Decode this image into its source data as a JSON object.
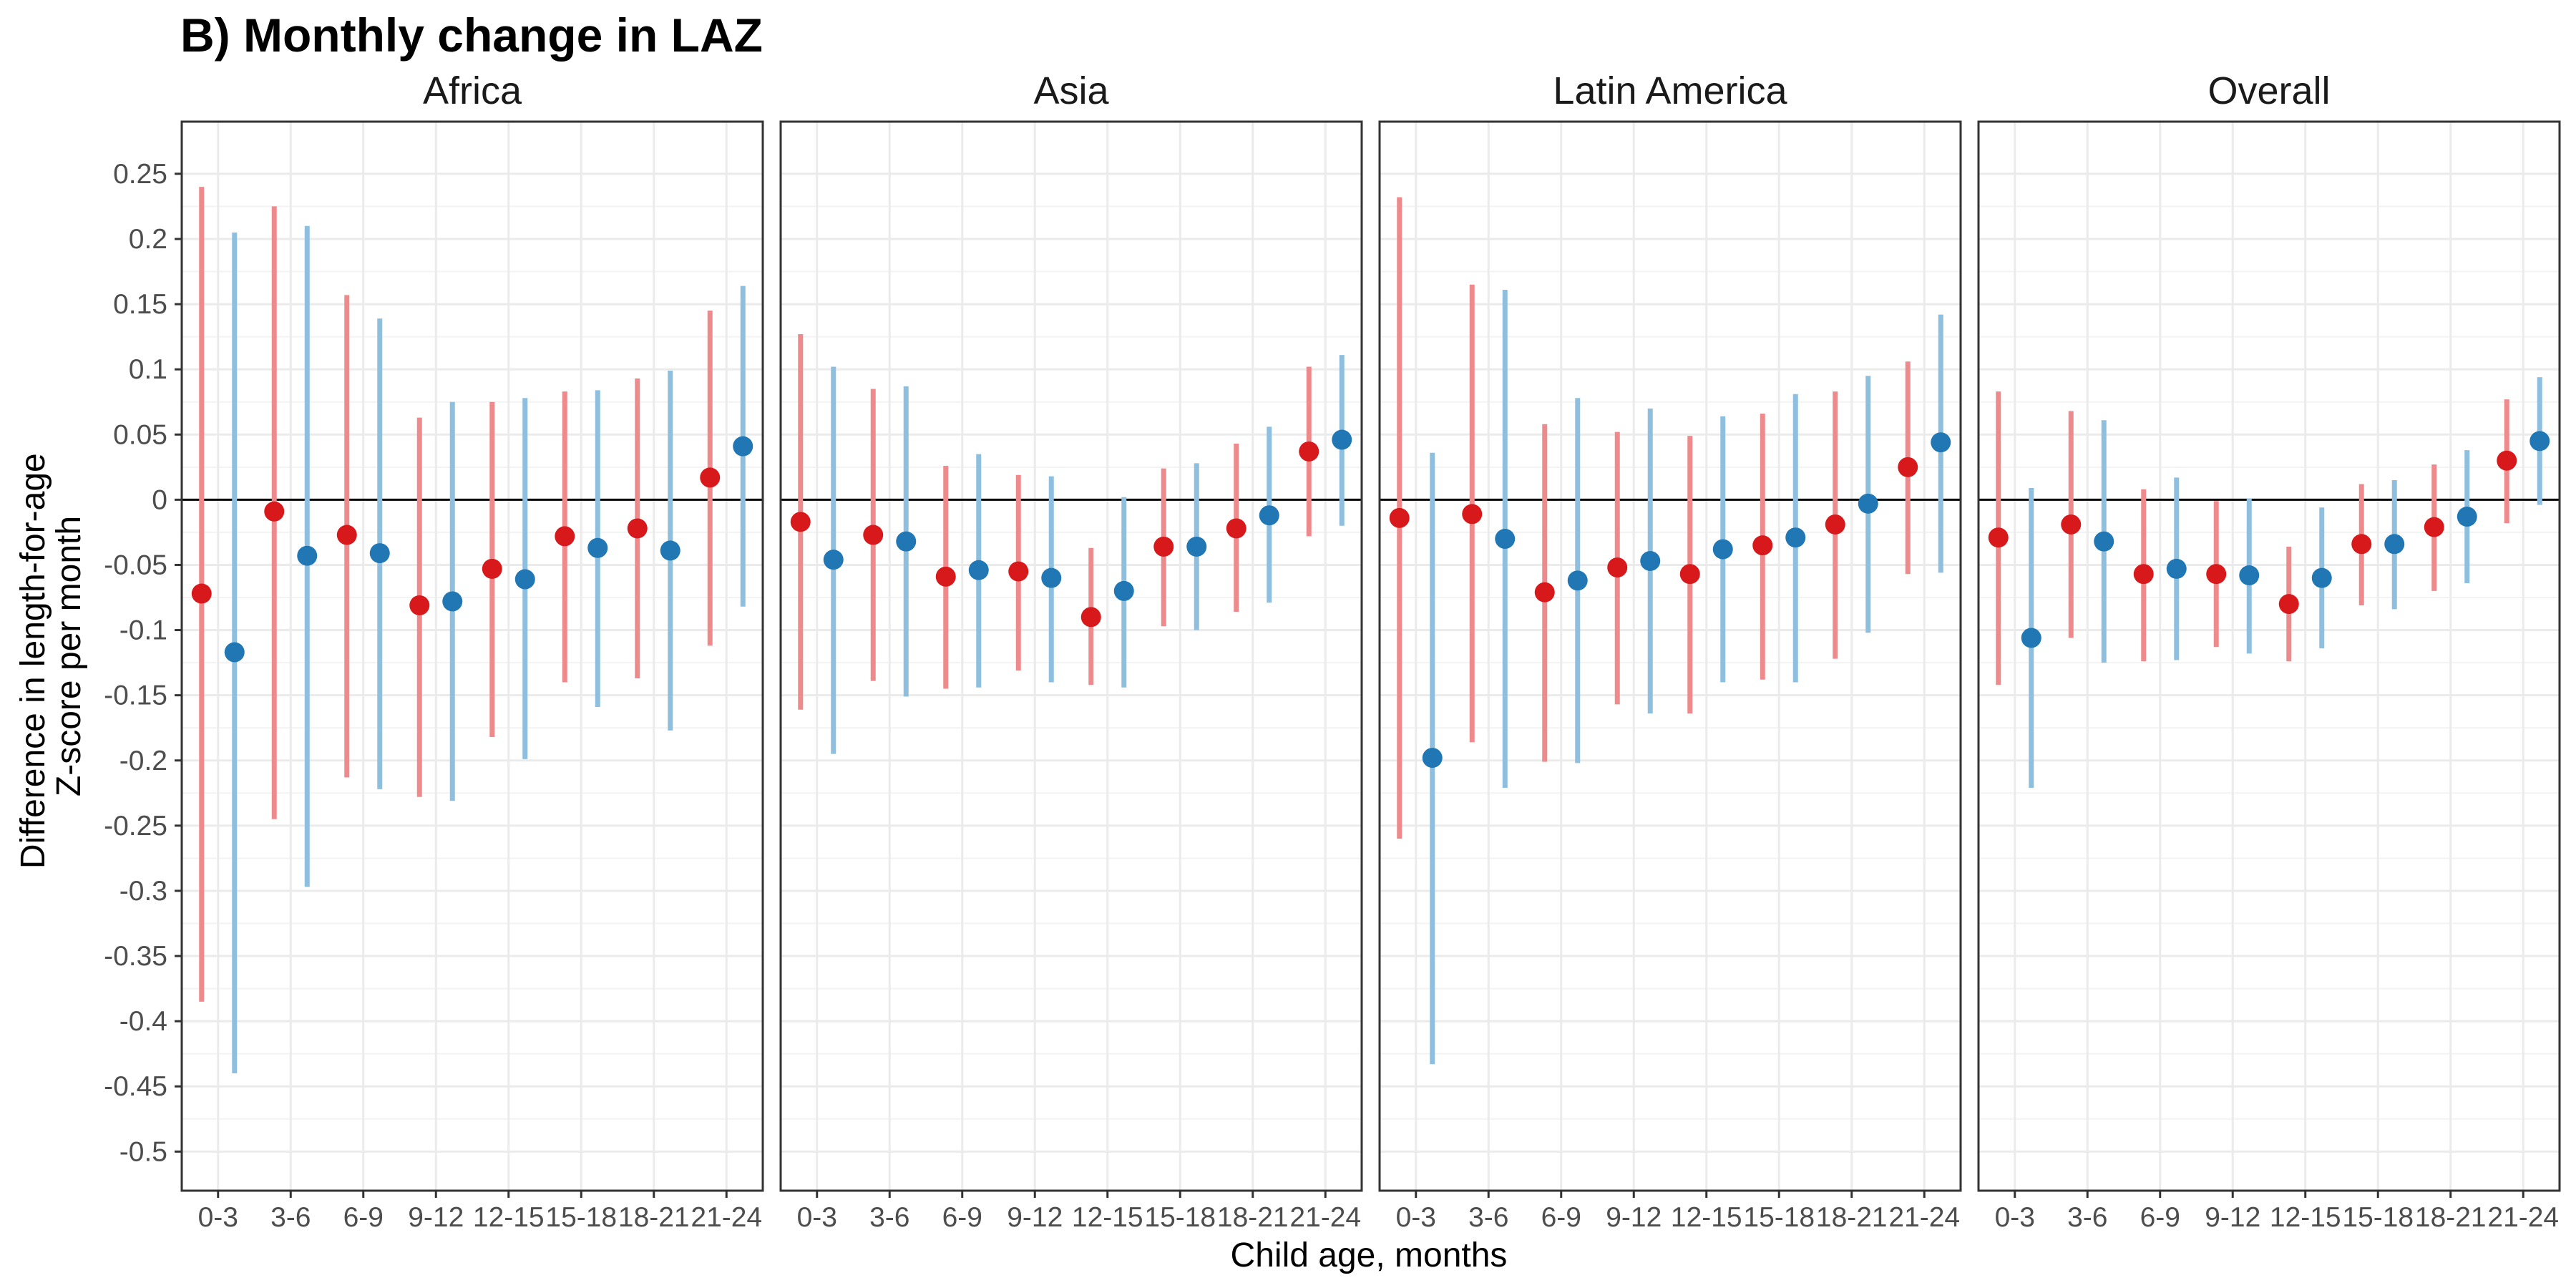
{
  "title": "B) Monthly change in LAZ",
  "chart_data": {
    "type": "scatter",
    "subtype": "point-range, faceted",
    "title": "B) Monthly change in LAZ",
    "xlabel": "Child age, months",
    "ylabel": [
      "Difference in length-for-age",
      "Z-score per month"
    ],
    "ylim": [
      -0.53,
      0.29
    ],
    "yticks": [
      0.25,
      0.2,
      0.15,
      0.1,
      0.05,
      0,
      -0.05,
      -0.1,
      -0.15,
      -0.2,
      -0.25,
      -0.3,
      -0.35,
      -0.4,
      -0.45,
      -0.5
    ],
    "ytick_labels": [
      "0.25",
      "0.2",
      "0.15",
      "0.1",
      "0.05",
      "0",
      "-0.05",
      "-0.1",
      "-0.15",
      "-0.2",
      "-0.25",
      "-0.3",
      "-0.35",
      "-0.4",
      "-0.45",
      "-0.5"
    ],
    "categories": [
      "0-3",
      "3-6",
      "6-9",
      "9-12",
      "12-15",
      "15-18",
      "18-21",
      "21-24"
    ],
    "reference_line": 0,
    "grid": true,
    "legend": "none",
    "colors": {
      "series_a_point": "#d7191c",
      "series_a_line": "#ee8a8b",
      "series_b_point": "#2077b4",
      "series_b_line": "#8fbfdf",
      "panel_border": "#333333",
      "grid_major": "#ebebeb",
      "grid_minor": "#f3f3f3"
    },
    "panels": [
      {
        "name": "Africa",
        "series": [
          {
            "est": [
              -0.072,
              -0.009,
              -0.027,
              -0.081,
              -0.053,
              -0.028,
              -0.022,
              0.017
            ],
            "lo": [
              -0.385,
              -0.245,
              -0.213,
              -0.228,
              -0.182,
              -0.14,
              -0.137,
              -0.112
            ],
            "hi": [
              0.24,
              0.225,
              0.157,
              0.063,
              0.075,
              0.083,
              0.093,
              0.145
            ]
          },
          {
            "est": [
              -0.117,
              -0.043,
              -0.041,
              -0.078,
              -0.061,
              -0.037,
              -0.039,
              0.041
            ],
            "lo": [
              -0.44,
              -0.297,
              -0.222,
              -0.231,
              -0.199,
              -0.159,
              -0.177,
              -0.082
            ],
            "hi": [
              0.205,
              0.21,
              0.139,
              0.075,
              0.078,
              0.084,
              0.099,
              0.164
            ]
          }
        ]
      },
      {
        "name": "Asia",
        "series": [
          {
            "est": [
              -0.017,
              -0.027,
              -0.059,
              -0.055,
              -0.09,
              -0.036,
              -0.022,
              0.037
            ],
            "lo": [
              -0.161,
              -0.139,
              -0.145,
              -0.131,
              -0.142,
              -0.097,
              -0.086,
              -0.028
            ],
            "hi": [
              0.127,
              0.085,
              0.026,
              0.019,
              -0.037,
              0.024,
              0.043,
              0.102
            ]
          },
          {
            "est": [
              -0.046,
              -0.032,
              -0.054,
              -0.06,
              -0.07,
              -0.036,
              -0.012,
              0.046
            ],
            "lo": [
              -0.195,
              -0.151,
              -0.144,
              -0.14,
              -0.144,
              -0.1,
              -0.079,
              -0.02
            ],
            "hi": [
              0.102,
              0.087,
              0.035,
              0.018,
              0.002,
              0.028,
              0.056,
              0.111
            ]
          }
        ]
      },
      {
        "name": "Latin America",
        "series": [
          {
            "est": [
              -0.014,
              -0.011,
              -0.071,
              -0.052,
              -0.057,
              -0.035,
              -0.019,
              0.025
            ],
            "lo": [
              -0.26,
              -0.186,
              -0.201,
              -0.157,
              -0.164,
              -0.138,
              -0.122,
              -0.057
            ],
            "hi": [
              0.232,
              0.165,
              0.058,
              0.052,
              0.049,
              0.066,
              0.083,
              0.106
            ]
          },
          {
            "est": [
              -0.198,
              -0.03,
              -0.062,
              -0.047,
              -0.038,
              -0.029,
              -0.003,
              0.044
            ],
            "lo": [
              -0.433,
              -0.221,
              -0.202,
              -0.164,
              -0.14,
              -0.14,
              -0.102,
              -0.056
            ],
            "hi": [
              0.036,
              0.161,
              0.078,
              0.07,
              0.064,
              0.081,
              0.095,
              0.142
            ]
          }
        ]
      },
      {
        "name": "Overall",
        "series": [
          {
            "est": [
              -0.029,
              -0.019,
              -0.057,
              -0.057,
              -0.08,
              -0.034,
              -0.021,
              0.03
            ],
            "lo": [
              -0.142,
              -0.106,
              -0.124,
              -0.113,
              -0.124,
              -0.081,
              -0.07,
              -0.018
            ],
            "hi": [
              0.083,
              0.068,
              0.008,
              -0.001,
              -0.036,
              0.012,
              0.027,
              0.077
            ]
          },
          {
            "est": [
              -0.106,
              -0.032,
              -0.053,
              -0.058,
              -0.06,
              -0.034,
              -0.013,
              0.045
            ],
            "lo": [
              -0.221,
              -0.125,
              -0.123,
              -0.118,
              -0.114,
              -0.084,
              -0.064,
              -0.004
            ],
            "hi": [
              0.009,
              0.061,
              0.017,
              0.001,
              -0.006,
              0.015,
              0.038,
              0.094
            ]
          }
        ]
      }
    ]
  }
}
